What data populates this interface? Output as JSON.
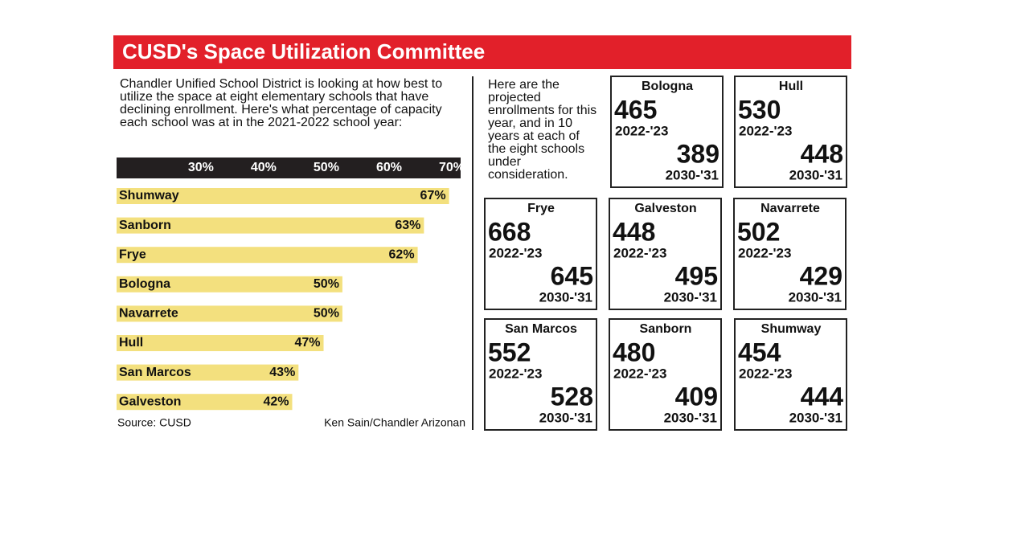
{
  "title": "CUSD's Space Utilization Committee",
  "intro": "Chandler Unified School District is looking at how best to utilize the space at eight elementary schools that have declining enrollment. Here's what percentage of capacity each school was at in the 2021-2022 school year:",
  "chart_data": {
    "type": "bar",
    "orientation": "horizontal",
    "categories": [
      "Shumway",
      "Sanborn",
      "Frye",
      "Bologna",
      "Navarrete",
      "Hull",
      "San Marcos",
      "Galveston"
    ],
    "values": [
      67,
      63,
      62,
      50,
      50,
      47,
      43,
      42
    ],
    "value_labels": [
      "67%",
      "63%",
      "62%",
      "50%",
      "50%",
      "47%",
      "43%",
      "42%"
    ],
    "color": "#f3e07e",
    "xlim": [
      14,
      70
    ],
    "xticks": [
      {
        "value": 30,
        "label": "30%"
      },
      {
        "value": 40,
        "label": "40%"
      },
      {
        "value": 50,
        "label": "50%"
      },
      {
        "value": 60,
        "label": "60%"
      },
      {
        "value": 70,
        "label": "70%"
      }
    ]
  },
  "source": "Source: CUSD",
  "credit": "Ken Sain/Chandler Arizonan",
  "projections": {
    "intro": "Here are the projected enrollments for this year, and in 10 years at each of the eight schools under consideration.",
    "current_year": "2022-'23",
    "future_year": "2030-'31",
    "schools": [
      {
        "name": "Bologna",
        "current": 465,
        "future": 389
      },
      {
        "name": "Hull",
        "current": 530,
        "future": 448
      },
      {
        "name": "Frye",
        "current": 668,
        "future": 645
      },
      {
        "name": "Galveston",
        "current": 448,
        "future": 495
      },
      {
        "name": "Navarrete",
        "current": 502,
        "future": 429
      },
      {
        "name": "San Marcos",
        "current": 552,
        "future": 528
      },
      {
        "name": "Sanborn",
        "current": 480,
        "future": 409
      },
      {
        "name": "Shumway",
        "current": 454,
        "future": 444
      }
    ]
  }
}
